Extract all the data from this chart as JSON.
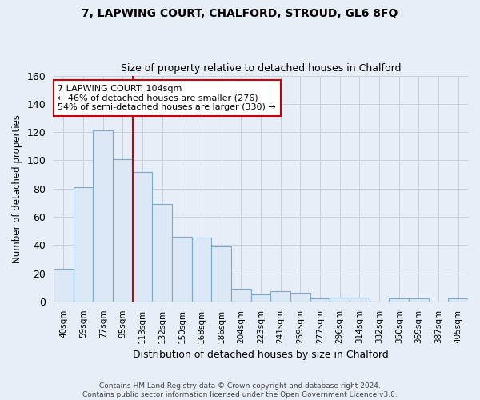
{
  "title": "7, LAPWING COURT, CHALFORD, STROUD, GL6 8FQ",
  "subtitle": "Size of property relative to detached houses in Chalford",
  "xlabel": "Distribution of detached houses by size in Chalford",
  "ylabel": "Number of detached properties",
  "footer_line1": "Contains HM Land Registry data © Crown copyright and database right 2024.",
  "footer_line2": "Contains public sector information licensed under the Open Government Licence v3.0.",
  "bin_labels": [
    "40sqm",
    "59sqm",
    "77sqm",
    "95sqm",
    "113sqm",
    "132sqm",
    "150sqm",
    "168sqm",
    "186sqm",
    "204sqm",
    "223sqm",
    "241sqm",
    "259sqm",
    "277sqm",
    "296sqm",
    "314sqm",
    "332sqm",
    "350sqm",
    "369sqm",
    "387sqm",
    "405sqm"
  ],
  "bar_heights": [
    23,
    81,
    121,
    101,
    92,
    69,
    46,
    45,
    39,
    9,
    5,
    7,
    6,
    2,
    3,
    3,
    0,
    2,
    2,
    0,
    2
  ],
  "bar_color": "#dce8f5",
  "bar_edge_color": "#7aaac8",
  "grid_color": "#c8d0dc",
  "bg_color": "#e8eef8",
  "vline_x": 3.5,
  "vline_color": "#cc0000",
  "annotation_line1": "7 LAPWING COURT: 104sqm",
  "annotation_line2": "← 46% of detached houses are smaller (276)",
  "annotation_line3": "54% of semi-detached houses are larger (330) →",
  "annotation_box_color": "#ffffff",
  "annotation_box_edge": "#cc0000",
  "ylim": [
    0,
    160
  ],
  "yticks": [
    0,
    20,
    40,
    60,
    80,
    100,
    120,
    140,
    160
  ]
}
